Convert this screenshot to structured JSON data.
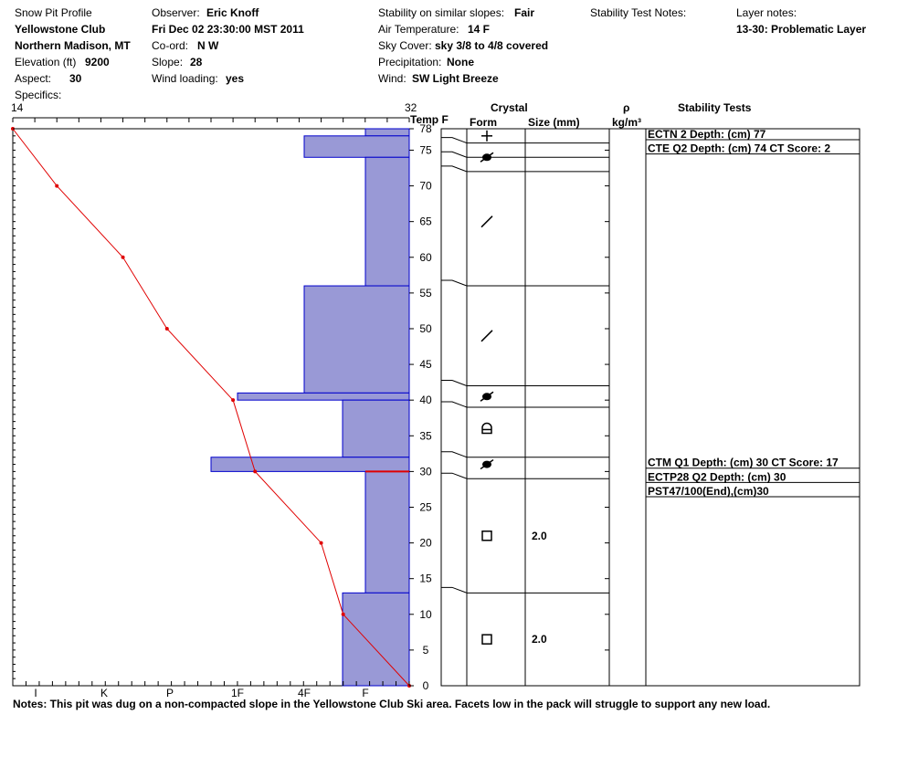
{
  "header": {
    "title": "Snow Pit Profile",
    "location_name": "Yellowstone Club",
    "region": "Northern Madison, MT",
    "elevation_label": "Elevation (ft)",
    "elevation_value": "9200",
    "aspect_label": "Aspect:",
    "aspect_value": "30",
    "specifics_label": "Specifics:",
    "observer_label": "Observer:",
    "observer_value": "Eric Knoff",
    "datetime": "Fri Dec 02 23:30:00 MST 2011",
    "coord_label": "Co-ord:",
    "coord_value": "N  W",
    "slope_label": "Slope:",
    "slope_value": "28",
    "wind_loading_label": "Wind loading:",
    "wind_loading_value": "yes",
    "stability_label": "Stability on similar slopes:",
    "stability_value": "Fair",
    "air_temp_label": "Air Temperature:",
    "air_temp_value": "14 F",
    "sky_label": "Sky Cover:",
    "sky_value": "sky 3/8 to 4/8 covered",
    "precip_label": "Precipitation:",
    "precip_value": "None",
    "wind_label": "Wind:",
    "wind_value": "SW Light Breeze",
    "stability_test_notes_label": "Stability Test Notes:",
    "layer_notes_label": "Layer notes:",
    "layer_notes_value": "13-30: Problematic Layer"
  },
  "columns": {
    "temp_f": "Temp F",
    "crystal": "Crystal",
    "form": "Form",
    "size": "Size (mm)",
    "rho": "ρ",
    "rho_unit": "kg/m³",
    "stability_tests": "Stability Tests"
  },
  "notes": "Notes:  This pit was dug on a non-compacted slope in the Yellowstone Club Ski area.  Facets low in the pack will struggle to support any new load.",
  "chart_data": {
    "type": "snow-profile",
    "temperature_axis": {
      "min": 14,
      "max": 32,
      "label": "Temp F",
      "min_label": "14",
      "max_label": "32"
    },
    "depth_axis": {
      "min": 0,
      "max": 78,
      "unit": "cm",
      "ticks": [
        0,
        5,
        10,
        15,
        20,
        25,
        30,
        35,
        40,
        45,
        50,
        55,
        60,
        65,
        70,
        75,
        78
      ]
    },
    "hardness_axis": {
      "labels": [
        "I",
        "K",
        "P",
        "1F",
        "4F",
        "F"
      ]
    },
    "temperature_profile": [
      {
        "depth": 78,
        "temp": 14
      },
      {
        "depth": 70,
        "temp": 16
      },
      {
        "depth": 60,
        "temp": 19
      },
      {
        "depth": 50,
        "temp": 21
      },
      {
        "depth": 40,
        "temp": 24
      },
      {
        "depth": 30,
        "temp": 25
      },
      {
        "depth": 20,
        "temp": 28
      },
      {
        "depth": 10,
        "temp": 29
      },
      {
        "depth": 0,
        "temp": 32
      }
    ],
    "hardness_profile": [
      {
        "top": 78,
        "bottom": 77,
        "hardness": "F"
      },
      {
        "top": 77,
        "bottom": 74,
        "hardness": "4F"
      },
      {
        "top": 74,
        "bottom": 56,
        "hardness": "F"
      },
      {
        "top": 56,
        "bottom": 41,
        "hardness": "4F"
      },
      {
        "top": 41,
        "bottom": 40,
        "hardness": "1F"
      },
      {
        "top": 40,
        "bottom": 32,
        "hardness": "4F-"
      },
      {
        "top": 32,
        "bottom": 30,
        "hardness": "1F+"
      },
      {
        "top": 30,
        "bottom": 13,
        "hardness": "F"
      },
      {
        "top": 13,
        "bottom": 0,
        "hardness": "F+"
      }
    ],
    "layer_boundaries": [
      78,
      76,
      74,
      72,
      56,
      42,
      39,
      32,
      29,
      13,
      0
    ],
    "crystals": [
      {
        "depth": 77,
        "form": "plus-icon",
        "size": ""
      },
      {
        "depth": 74,
        "form": "faceted-rounded-icon",
        "size": ""
      },
      {
        "depth": 65,
        "form": "slash-icon",
        "size": ""
      },
      {
        "depth": 49,
        "form": "slash-icon",
        "size": ""
      },
      {
        "depth": 40.5,
        "form": "faceted-rounded-icon",
        "size": ""
      },
      {
        "depth": 36,
        "form": "depth-hoar-icon",
        "size": ""
      },
      {
        "depth": 31,
        "form": "faceted-rounded-icon",
        "size": ""
      },
      {
        "depth": 21,
        "form": "square-icon",
        "size": "2.0"
      },
      {
        "depth": 6.5,
        "form": "square-icon",
        "size": "2.0"
      }
    ],
    "stability_tests": [
      {
        "depth": 78,
        "text": "ECTN 2   Depth: (cm) 77"
      },
      {
        "depth": 76,
        "text": "CTE Q2 Depth: (cm) 74 CT Score: 2"
      },
      {
        "depth": 32,
        "text": "CTM Q1 Depth: (cm) 30 CT Score: 17"
      },
      {
        "depth": 30,
        "text": "ECTP28 Q2 Depth: (cm) 30"
      },
      {
        "depth": 28,
        "text": "PST47/100(End),(cm)30"
      }
    ],
    "colors": {
      "hardness_fill": "#9999d6",
      "hardness_stroke": "#0000cc",
      "temperature_line": "#e00000",
      "critical_layer": "#e00000"
    }
  }
}
